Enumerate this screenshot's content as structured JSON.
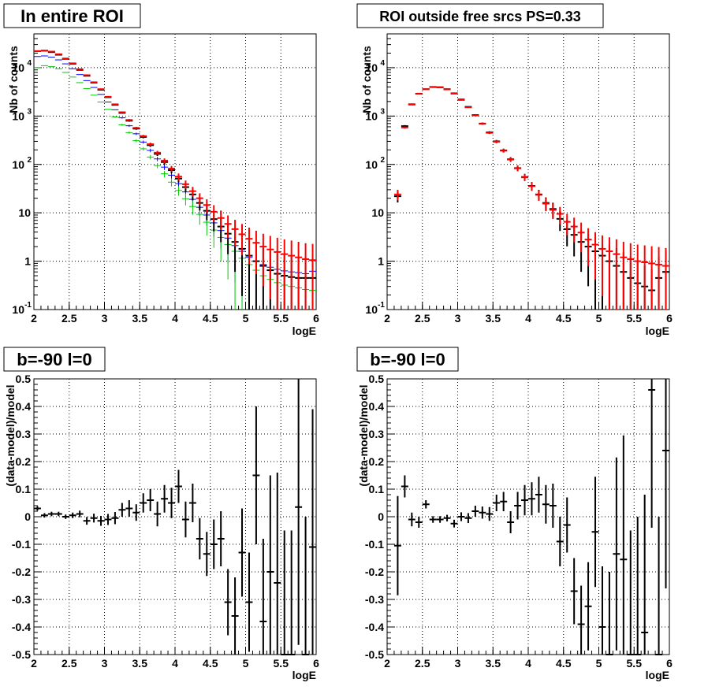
{
  "colors": {
    "data": "#000000",
    "model": "#ff0000",
    "component_a": "#0000ff",
    "component_b": "#00cc00"
  },
  "chart_data": [
    {
      "type": "scatter",
      "title": "In entire ROI",
      "xlabel": "logE",
      "ylabel": "Nb of counts",
      "xlim": [
        2,
        6
      ],
      "ylim": [
        0.1,
        50000
      ],
      "log_y": true,
      "grid": true,
      "xticks": [
        "2",
        "2.5",
        "3",
        "3.5",
        "4",
        "4.5",
        "5",
        "5.5",
        "6"
      ],
      "yticks": [
        "10^-1",
        "1",
        "10",
        "10^2",
        "10^3",
        "10^4"
      ],
      "series": [
        {
          "color": "#0000ff",
          "x": [
            2.05,
            2.15,
            2.25,
            2.35,
            2.45,
            2.55,
            2.65,
            2.75,
            2.85,
            2.95,
            3.05,
            3.15,
            3.25,
            3.35,
            3.45,
            3.55,
            3.65,
            3.75,
            3.85,
            3.95,
            4.05,
            4.15,
            4.25,
            4.35,
            4.45,
            4.55,
            4.65,
            4.75,
            4.85,
            4.95,
            5.05,
            5.15,
            5.25,
            5.35,
            5.45,
            5.55,
            5.65,
            5.75,
            5.85,
            5.95
          ],
          "y": [
            17000,
            17500,
            16500,
            14500,
            12000,
            9500,
            7200,
            5400,
            3900,
            2800,
            1950,
            1350,
            920,
            630,
            430,
            290,
            195,
            130,
            88,
            60,
            40,
            27,
            19,
            13,
            9,
            6.2,
            4.3,
            3.0,
            2.1,
            1.6,
            1.2,
            1.0,
            0.85,
            0.75,
            0.68,
            0.63,
            0.6,
            0.58,
            0.55,
            0.62
          ]
        },
        {
          "color": "#00cc00",
          "x": [
            2.05,
            2.15,
            2.25,
            2.35,
            2.45,
            2.55,
            2.65,
            2.75,
            2.85,
            2.95,
            3.05,
            3.15,
            3.25,
            3.35,
            3.45,
            3.55,
            3.65,
            3.75,
            3.85,
            3.95,
            4.05,
            4.15,
            4.25,
            4.35,
            4.45,
            4.55,
            4.65,
            4.75,
            4.85,
            4.95,
            5.05,
            5.15,
            5.25,
            5.35,
            5.45,
            5.55,
            5.65,
            5.75,
            5.85,
            5.95
          ],
          "y": [
            10000,
            11000,
            10500,
            9500,
            8000,
            6400,
            4900,
            3700,
            2700,
            1950,
            1380,
            960,
            660,
            455,
            310,
            210,
            142,
            95,
            64,
            43,
            29,
            19.5,
            13.5,
            9.3,
            6.4,
            4.4,
            3.1,
            2.2,
            1.6,
            1.15,
            0.85,
            0.65,
            0.5,
            0.42,
            0.36,
            0.32,
            0.3,
            0.28,
            0.26,
            0.25
          ]
        },
        {
          "color": "#000000",
          "x": [
            2.05,
            2.15,
            2.25,
            2.35,
            2.45,
            2.55,
            2.65,
            2.75,
            2.85,
            2.95,
            3.05,
            3.15,
            3.25,
            3.35,
            3.45,
            3.55,
            3.65,
            3.75,
            3.85,
            3.95,
            4.05,
            4.15,
            4.25,
            4.35,
            4.45,
            4.55,
            4.65,
            4.75,
            4.85,
            4.95,
            5.05,
            5.15,
            5.25,
            5.35,
            5.45,
            5.55,
            5.65,
            5.75,
            5.85,
            5.95
          ],
          "y": [
            22000,
            22500,
            21000,
            18500,
            15200,
            12000,
            9000,
            6800,
            4900,
            3500,
            2450,
            1700,
            1160,
            800,
            550,
            370,
            250,
            165,
            112,
            76,
            51,
            34,
            24,
            16,
            11,
            7.4,
            5.2,
            3.7,
            2.5,
            1.8,
            1.3,
            1.0,
            0.8,
            0.65,
            0.55,
            0.5,
            0.47,
            0.45,
            0.45,
            0.45
          ]
        },
        {
          "color": "#ff0000",
          "x": [
            2.05,
            2.15,
            2.25,
            2.35,
            2.45,
            2.55,
            2.65,
            2.75,
            2.85,
            2.95,
            3.05,
            3.15,
            3.25,
            3.35,
            3.45,
            3.55,
            3.65,
            3.75,
            3.85,
            3.95,
            4.05,
            4.15,
            4.25,
            4.35,
            4.45,
            4.55,
            4.65,
            4.75,
            4.85,
            4.95,
            5.05,
            5.15,
            5.25,
            5.35,
            5.45,
            5.55,
            5.65,
            5.75,
            5.85,
            5.95
          ],
          "y": [
            22000,
            22500,
            21500,
            19000,
            15500,
            12300,
            9300,
            7000,
            5000,
            3600,
            2500,
            1750,
            1200,
            830,
            570,
            385,
            262,
            175,
            120,
            82,
            56,
            39,
            28,
            20,
            14.5,
            10.5,
            7.8,
            5.9,
            4.6,
            3.6,
            2.9,
            2.4,
            2.0,
            1.75,
            1.55,
            1.4,
            1.3,
            1.2,
            1.1,
            1.05
          ]
        }
      ]
    },
    {
      "type": "scatter",
      "title": "ROI outside free srcs PS=0.33",
      "xlabel": "logE",
      "ylabel": "Nb of counts",
      "xlim": [
        2,
        6
      ],
      "ylim": [
        0.1,
        50000
      ],
      "log_y": true,
      "grid": true,
      "xticks": [
        "2",
        "2.5",
        "3",
        "3.5",
        "4",
        "4.5",
        "5",
        "5.5",
        "6"
      ],
      "yticks": [
        "10^-1",
        "1",
        "10",
        "10^2",
        "10^3",
        "10^4"
      ],
      "series": [
        {
          "color": "#000000",
          "x": [
            2.15,
            2.25,
            2.35,
            2.45,
            2.55,
            2.65,
            2.75,
            2.85,
            2.95,
            3.05,
            3.15,
            3.25,
            3.35,
            3.45,
            3.55,
            3.65,
            3.75,
            3.85,
            3.95,
            4.05,
            4.15,
            4.25,
            4.35,
            4.45,
            4.55,
            4.65,
            4.75,
            4.85,
            4.95,
            5.05,
            5.15,
            5.25,
            5.35,
            5.45,
            5.55,
            5.65,
            5.75,
            5.85,
            5.95
          ],
          "y": [
            22,
            620,
            1750,
            2900,
            3600,
            4000,
            3950,
            3600,
            2950,
            2200,
            1550,
            1050,
            700,
            460,
            300,
            195,
            128,
            84,
            55,
            36,
            24,
            16,
            12,
            7.5,
            4.6,
            3.5,
            2.5,
            2.0,
            1.6,
            1.3,
            1.0,
            0.8,
            0.6,
            0.45,
            0.35,
            0.3,
            0.25,
            0.45,
            0.6
          ]
        },
        {
          "color": "#ff0000",
          "x": [
            2.15,
            2.25,
            2.35,
            2.45,
            2.55,
            2.65,
            2.75,
            2.85,
            2.95,
            3.05,
            3.15,
            3.25,
            3.35,
            3.45,
            3.55,
            3.65,
            3.75,
            3.85,
            3.95,
            4.05,
            4.15,
            4.25,
            4.35,
            4.45,
            4.55,
            4.65,
            4.75,
            4.85,
            4.95,
            5.05,
            5.15,
            5.25,
            5.35,
            5.45,
            5.55,
            5.65,
            5.75,
            5.85,
            5.95
          ],
          "y": [
            24,
            580,
            1720,
            2880,
            3580,
            3960,
            3900,
            3550,
            2900,
            2150,
            1520,
            1030,
            690,
            450,
            295,
            192,
            126,
            83,
            54,
            35.5,
            23.5,
            15.5,
            11.5,
            9.5,
            6.5,
            5.2,
            3.9,
            2.8,
            2.2,
            1.8,
            1.6,
            1.4,
            1.2,
            1.1,
            1.0,
            0.95,
            0.9,
            0.85,
            0.8
          ]
        }
      ]
    },
    {
      "type": "scatter",
      "title": "b=-90 l=0",
      "xlabel": "logE",
      "ylabel": "(data-model)/model",
      "xlim": [
        2,
        6
      ],
      "ylim": [
        -0.5,
        0.5
      ],
      "grid": true,
      "xticks": [
        "2",
        "2.5",
        "3",
        "3.5",
        "4",
        "4.5",
        "5",
        "5.5",
        "6"
      ],
      "yticks": [
        "-0.5",
        "-0.4",
        "-0.3",
        "-0.2",
        "-0.1",
        "0",
        "0.1",
        "0.2",
        "0.3",
        "0.4",
        "0.5"
      ],
      "series": [
        {
          "color": "#000000",
          "x": [
            2.05,
            2.15,
            2.25,
            2.35,
            2.45,
            2.55,
            2.65,
            2.75,
            2.85,
            2.95,
            3.05,
            3.15,
            3.25,
            3.35,
            3.45,
            3.55,
            3.65,
            3.75,
            3.85,
            3.95,
            4.05,
            4.15,
            4.25,
            4.35,
            4.45,
            4.55,
            4.65,
            4.75,
            4.85,
            4.95,
            5.05,
            5.15,
            5.25,
            5.35,
            5.45,
            5.55,
            5.65,
            5.75,
            5.85,
            5.95
          ],
          "y": [
            0.03,
            0.005,
            0.01,
            0.01,
            0.0,
            0.005,
            0.01,
            -0.015,
            -0.005,
            -0.015,
            -0.01,
            -0.005,
            0.025,
            0.03,
            0.015,
            0.05,
            0.06,
            0.01,
            0.065,
            0.05,
            0.11,
            -0.01,
            0.05,
            -0.08,
            -0.135,
            -0.1,
            -0.08,
            -0.31,
            -0.36,
            -0.13,
            -0.31,
            0.15,
            -0.38,
            -0.2,
            -0.24,
            -0.5,
            -0.5,
            0.035,
            -0.5,
            -0.11
          ],
          "err": [
            0.008,
            0.008,
            0.008,
            0.008,
            0.008,
            0.01,
            0.012,
            0.014,
            0.016,
            0.018,
            0.02,
            0.022,
            0.025,
            0.03,
            0.03,
            0.035,
            0.04,
            0.045,
            0.05,
            0.055,
            0.06,
            0.065,
            0.07,
            0.075,
            0.08,
            0.09,
            0.1,
            0.12,
            0.14,
            0.16,
            0.18,
            0.25,
            0.3,
            0.35,
            0.4,
            0.45,
            0.45,
            0.5,
            0.5,
            0.5
          ]
        }
      ]
    },
    {
      "type": "scatter",
      "title": "b=-90 l=0",
      "xlabel": "logE",
      "ylabel": "(data-model)/model",
      "xlim": [
        2,
        6
      ],
      "ylim": [
        -0.5,
        0.5
      ],
      "grid": true,
      "xticks": [
        "2",
        "2.5",
        "3",
        "3.5",
        "4",
        "4.5",
        "5",
        "5.5",
        "6"
      ],
      "yticks": [
        "-0.5",
        "-0.4",
        "-0.3",
        "-0.2",
        "-0.1",
        "0",
        "0.1",
        "0.2",
        "0.3",
        "0.4",
        "0.5"
      ],
      "series": [
        {
          "color": "#000000",
          "x": [
            2.15,
            2.25,
            2.35,
            2.45,
            2.55,
            2.65,
            2.75,
            2.85,
            2.95,
            3.05,
            3.15,
            3.25,
            3.35,
            3.45,
            3.55,
            3.65,
            3.75,
            3.85,
            3.95,
            4.05,
            4.15,
            4.25,
            4.35,
            4.45,
            4.55,
            4.65,
            4.75,
            4.85,
            4.95,
            5.05,
            5.15,
            5.25,
            5.35,
            5.45,
            5.55,
            5.65,
            5.75,
            5.85,
            5.95
          ],
          "y": [
            -0.105,
            0.11,
            -0.01,
            -0.02,
            0.045,
            -0.01,
            -0.01,
            -0.005,
            -0.025,
            0.0,
            -0.005,
            0.02,
            0.015,
            0.01,
            0.05,
            0.055,
            -0.02,
            0.04,
            0.06,
            0.065,
            0.08,
            0.045,
            0.04,
            -0.09,
            -0.03,
            -0.27,
            -0.39,
            -0.325,
            -0.055,
            -0.4,
            -0.5,
            -0.135,
            -0.155,
            -0.5,
            -0.5,
            -0.42,
            0.46,
            -0.5,
            0.24
          ],
          "err": [
            0.18,
            0.04,
            0.025,
            0.02,
            0.015,
            0.012,
            0.012,
            0.012,
            0.014,
            0.016,
            0.018,
            0.02,
            0.022,
            0.025,
            0.03,
            0.035,
            0.04,
            0.05,
            0.055,
            0.06,
            0.065,
            0.07,
            0.08,
            0.09,
            0.1,
            0.12,
            0.14,
            0.16,
            0.2,
            0.22,
            0.3,
            0.35,
            0.45,
            0.45,
            0.5,
            0.5,
            0.5,
            0.5,
            0.5
          ]
        }
      ]
    }
  ]
}
